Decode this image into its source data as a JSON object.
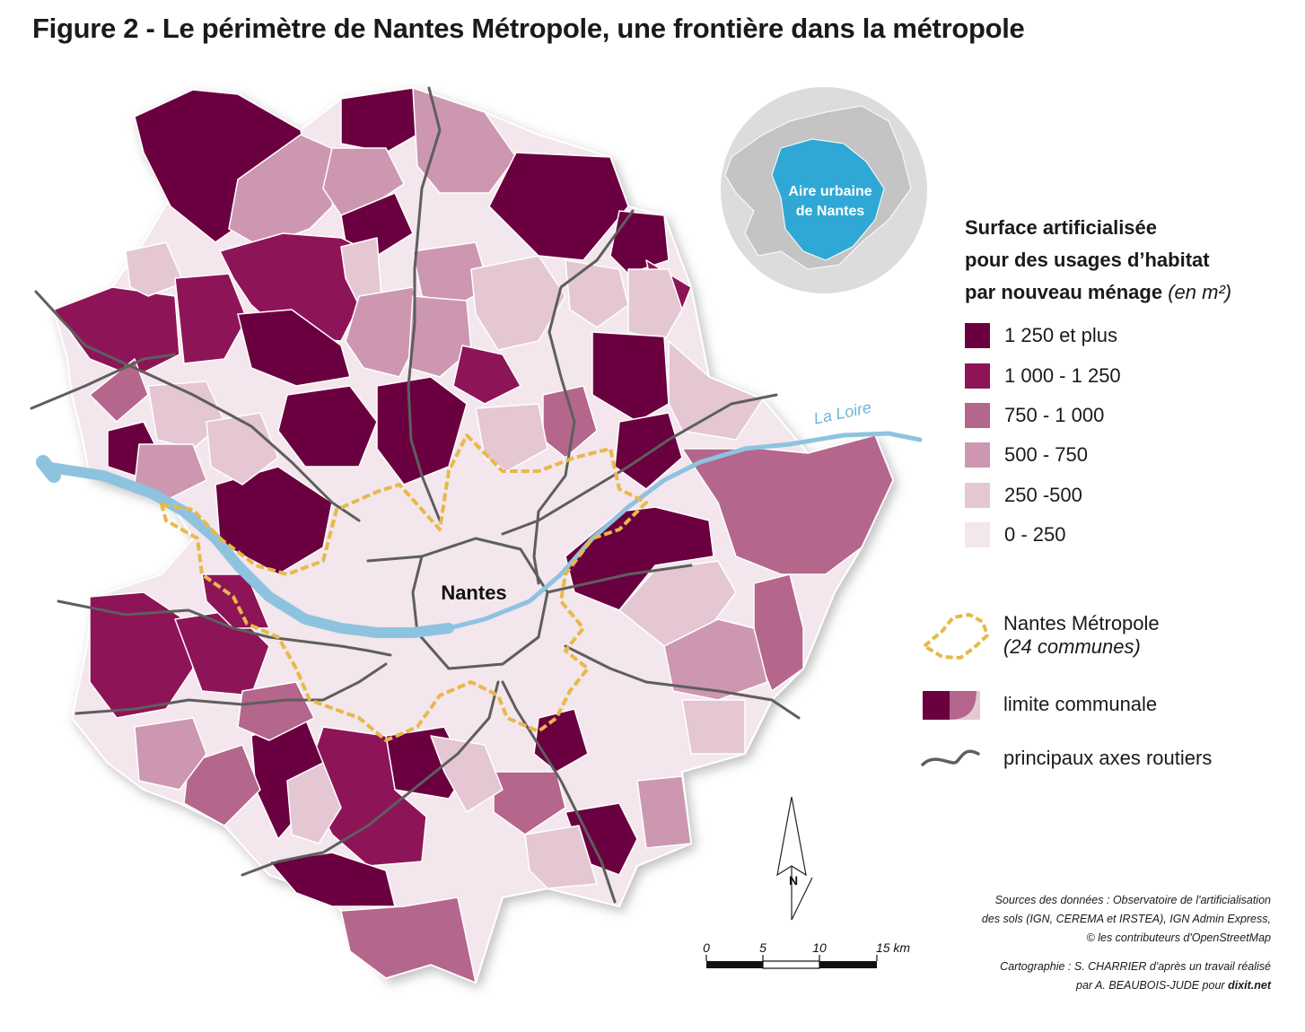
{
  "title": "Figure 2 - Le périmètre de Nantes Métropole, une frontière dans la métropole",
  "city_label": "Nantes",
  "river_label": "La Loire",
  "inset": {
    "label_line1": "Aire urbaine",
    "label_line2": "de Nantes"
  },
  "legend": {
    "title_line1": "Surface artificialisée",
    "title_line2": "pour des usages d’habitat",
    "title_line3": "par nouveau ménage",
    "title_unit": "(en m²)",
    "classes": [
      {
        "label": "1 250 et plus",
        "color": "#6b0040"
      },
      {
        "label": "1 000 - 1 250",
        "color": "#8e1458"
      },
      {
        "label": "750 - 1 000",
        "color": "#b5668c"
      },
      {
        "label": "500 - 750",
        "color": "#cd97b1"
      },
      {
        "label": "250 -500",
        "color": "#e5c7d4"
      },
      {
        "label": "0 - 250",
        "color": "#f3e6ec"
      }
    ],
    "symbols": {
      "metropole_label": "Nantes Métropole",
      "metropole_sub": "(24 communes)",
      "commune_label": "limite communale",
      "roads_label": "principaux axes routiers"
    }
  },
  "scale": {
    "ticks": [
      "0",
      "5",
      "10",
      "15 km"
    ]
  },
  "north_label": "N",
  "sources": {
    "line1": "Sources des données : Observatoire de l'artificialisation",
    "line2": "des sols (IGN, CEREMA et IRSTEA), IGN Admin Express,",
    "line3": "© les contributeurs d'OpenStreetMap"
  },
  "credits": {
    "line1": "Cartographie : S. CHARRIER d'après un travail réalisé",
    "line2_prefix": "par A. BEAUBOIS-JUDE pour",
    "line2_site": "dixit.net"
  },
  "colors": {
    "river": "#8ec3e0",
    "roads": "#5e5e5e",
    "boundary": "#e8b84a",
    "inset_disc": "#dcdcdc",
    "inset_area": "#2fa8d5"
  }
}
